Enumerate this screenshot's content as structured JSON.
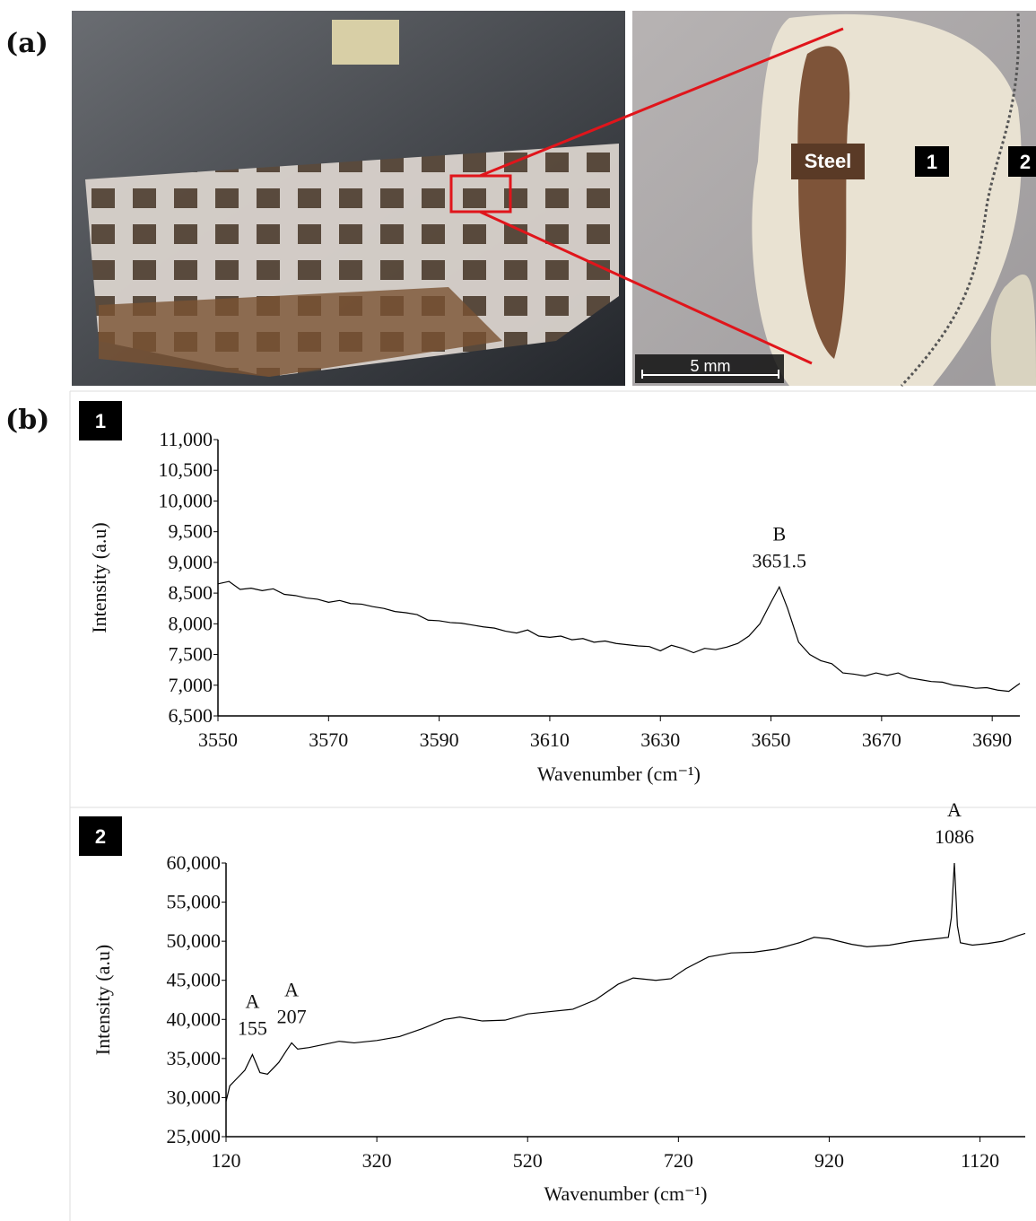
{
  "panel_labels": [
    "(a)",
    "(b)"
  ],
  "photo": {
    "steel_label": "Steel",
    "zone_labels": [
      "1",
      "2"
    ],
    "scale_bar": "5 mm"
  },
  "chart_data": [
    {
      "type": "line",
      "label": "1",
      "x_label": "Wavenumber (cm⁻¹)",
      "y_label": "Intensity (a.u)",
      "xlim": [
        3550,
        3695
      ],
      "xticks": [
        3550,
        3570,
        3590,
        3610,
        3630,
        3650,
        3670,
        3690
      ],
      "ylim": [
        6500,
        11000
      ],
      "yticks": [
        {
          "value": 6500,
          "label": "6,500"
        },
        {
          "value": 7000,
          "label": "7,000"
        },
        {
          "value": 7500,
          "label": "7,500"
        },
        {
          "value": 8000,
          "label": "8,000"
        },
        {
          "value": 8500,
          "label": "8,500"
        },
        {
          "value": 9000,
          "label": "9,000"
        },
        {
          "value": 9500,
          "label": "9,500"
        },
        {
          "value": 10000,
          "label": "10,000"
        },
        {
          "value": 10500,
          "label": "10,500"
        },
        {
          "value": 11000,
          "label": "11,000"
        }
      ],
      "x": [
        3550,
        3552,
        3554,
        3556,
        3558,
        3560,
        3562,
        3564,
        3566,
        3568,
        3570,
        3572,
        3574,
        3576,
        3578,
        3580,
        3582,
        3584,
        3586,
        3588,
        3590,
        3592,
        3594,
        3596,
        3598,
        3600,
        3602,
        3604,
        3606,
        3608,
        3610,
        3612,
        3614,
        3616,
        3618,
        3620,
        3622,
        3624,
        3626,
        3628,
        3630,
        3632,
        3634,
        3636,
        3638,
        3640,
        3642,
        3644,
        3646,
        3648,
        3650,
        3651.5,
        3653,
        3655,
        3657,
        3659,
        3661,
        3663,
        3665,
        3667,
        3669,
        3671,
        3673,
        3675,
        3677,
        3679,
        3681,
        3683,
        3685,
        3687,
        3689,
        3691,
        3693,
        3695
      ],
      "series": [
        {
          "color": "#000000",
          "values": [
            8650,
            8690,
            8560,
            8580,
            8540,
            8570,
            8480,
            8460,
            8420,
            8400,
            8350,
            8380,
            8330,
            8320,
            8280,
            8250,
            8200,
            8180,
            8150,
            8060,
            8050,
            8020,
            8010,
            7980,
            7950,
            7930,
            7880,
            7850,
            7900,
            7800,
            7780,
            7800,
            7740,
            7760,
            7700,
            7720,
            7680,
            7660,
            7640,
            7630,
            7560,
            7650,
            7600,
            7530,
            7600,
            7580,
            7620,
            7680,
            7800,
            8000,
            8350,
            8600,
            8250,
            7700,
            7500,
            7400,
            7350,
            7200,
            7180,
            7150,
            7200,
            7160,
            7200,
            7120,
            7090,
            7060,
            7050,
            7000,
            6980,
            6950,
            6960,
            6920,
            6900,
            7030
          ]
        }
      ],
      "annotations": [
        {
          "letter": "B",
          "x": 3651.5
        }
      ]
    },
    {
      "type": "line",
      "label": "2",
      "x_label": "Wavenumber (cm⁻¹)",
      "y_label": "Intensity (a.u)",
      "xlim": [
        120,
        1180
      ],
      "xticks": [
        120,
        320,
        520,
        720,
        920,
        1120
      ],
      "ylim": [
        25000,
        60000
      ],
      "yticks": [
        {
          "value": 25000,
          "label": "25,000"
        },
        {
          "value": 30000,
          "label": "30,000"
        },
        {
          "value": 35000,
          "label": "35,000"
        },
        {
          "value": 40000,
          "label": "40,000"
        },
        {
          "value": 45000,
          "label": "45,000"
        },
        {
          "value": 50000,
          "label": "50,000"
        },
        {
          "value": 55000,
          "label": "55,000"
        },
        {
          "value": 60000,
          "label": "60,000"
        }
      ],
      "x": [
        120,
        125,
        135,
        145,
        155,
        165,
        175,
        190,
        200,
        207,
        215,
        230,
        250,
        270,
        290,
        320,
        350,
        380,
        410,
        430,
        460,
        490,
        520,
        550,
        580,
        610,
        640,
        660,
        690,
        710,
        730,
        760,
        790,
        820,
        850,
        880,
        900,
        920,
        950,
        970,
        1000,
        1030,
        1060,
        1078,
        1082,
        1086,
        1090,
        1094,
        1110,
        1130,
        1150,
        1170,
        1180
      ],
      "series": [
        {
          "color": "#000000",
          "values": [
            29500,
            31500,
            32500,
            33500,
            35500,
            33200,
            33000,
            34500,
            36000,
            37000,
            36200,
            36400,
            36800,
            37200,
            37000,
            37300,
            37800,
            38800,
            40000,
            40300,
            39800,
            39900,
            40700,
            41000,
            41300,
            42500,
            44500,
            45300,
            45000,
            45200,
            46500,
            48000,
            48500,
            48600,
            49000,
            49800,
            50500,
            50300,
            49600,
            49300,
            49500,
            50000,
            50300,
            50500,
            53000,
            60000,
            52000,
            49800,
            49500,
            49700,
            50000,
            50700,
            51000
          ]
        }
      ],
      "annotations": [
        {
          "letter": "A",
          "x": 155
        },
        {
          "letter": "A",
          "x": 207
        },
        {
          "letter": "A",
          "x": 1086
        }
      ]
    }
  ]
}
